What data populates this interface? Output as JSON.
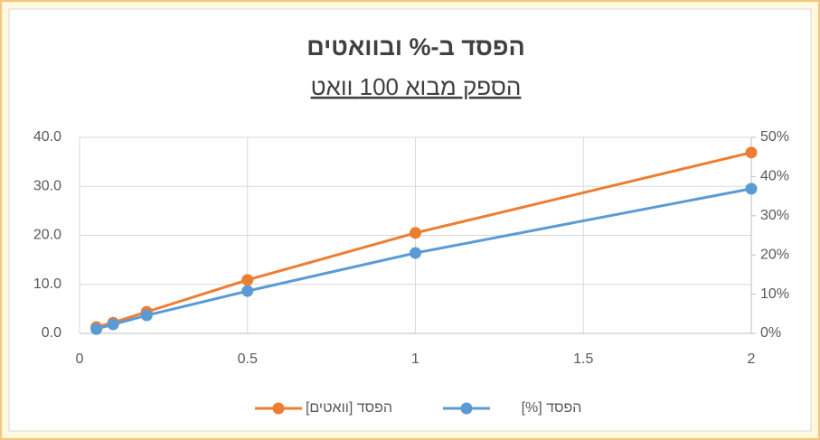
{
  "chart_data": {
    "type": "line",
    "title": "הפסד ב-% ובוואטים",
    "subtitle": "הספק מבוא 100 וואט",
    "x": [
      0.05,
      0.1,
      0.2,
      0.5,
      1,
      2
    ],
    "xlim": [
      0,
      2
    ],
    "xticks": [
      0,
      0.5,
      1,
      1.5,
      2
    ],
    "ylim": [
      0,
      40
    ],
    "yticks": [
      {
        "value": 0,
        "label": "0.0"
      },
      {
        "value": 10,
        "label": "10.0"
      },
      {
        "value": 20,
        "label": "20.0"
      },
      {
        "value": 30,
        "label": "30.0"
      },
      {
        "value": 40,
        "label": "40.0"
      }
    ],
    "y2lim": [
      0,
      50
    ],
    "y2ticks": [
      {
        "value": 0,
        "label": "0%"
      },
      {
        "value": 10,
        "label": "10%"
      },
      {
        "value": 20,
        "label": "20%"
      },
      {
        "value": 30,
        "label": "30%"
      },
      {
        "value": 40,
        "label": "40%"
      },
      {
        "value": 50,
        "label": "50%"
      }
    ],
    "grid": true,
    "legend": "bottom",
    "series": [
      {
        "name": "הפסד [וואטים]",
        "color": "#ed7d31",
        "values": [
          1.3,
          2.2,
          4.4,
          10.9,
          20.5,
          36.9
        ]
      },
      {
        "name": "הפסד [%]",
        "color": "#5b9bd5",
        "axis": "y2",
        "values": [
          1.1,
          2.3,
          4.6,
          10.8,
          20.5,
          36.9
        ]
      }
    ]
  }
}
